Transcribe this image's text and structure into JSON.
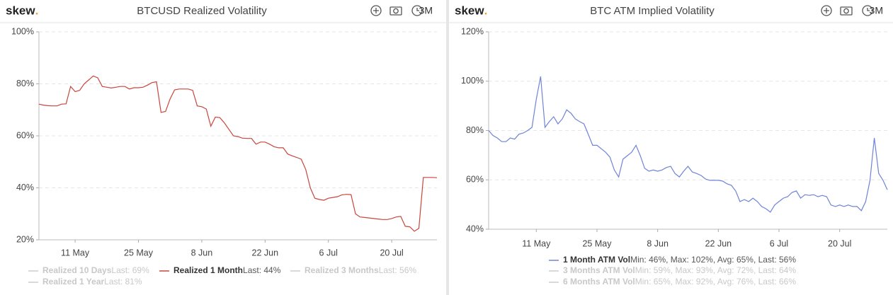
{
  "chart_data": [
    {
      "type": "line",
      "logo": "skew",
      "logo_dot": ".",
      "title": "BTCUSD Realized Volatility",
      "range_button": "3M",
      "x": [
        "3 May",
        "4 May",
        "5 May",
        "6 May",
        "7 May",
        "8 May",
        "9 May",
        "10 May",
        "11 May",
        "12 May",
        "13 May",
        "14 May",
        "15 May",
        "16 May",
        "17 May",
        "18 May",
        "19 May",
        "20 May",
        "21 May",
        "22 May",
        "23 May",
        "24 May",
        "25 May",
        "26 May",
        "27 May",
        "28 May",
        "29 May",
        "30 May",
        "31 May",
        "1 Jun",
        "2 Jun",
        "3 Jun",
        "4 Jun",
        "5 Jun",
        "6 Jun",
        "7 Jun",
        "8 Jun",
        "9 Jun",
        "10 Jun",
        "11 Jun",
        "12 Jun",
        "13 Jun",
        "14 Jun",
        "15 Jun",
        "16 Jun",
        "17 Jun",
        "18 Jun",
        "19 Jun",
        "20 Jun",
        "21 Jun",
        "22 Jun",
        "23 Jun",
        "24 Jun",
        "25 Jun",
        "26 Jun",
        "27 Jun",
        "28 Jun",
        "29 Jun",
        "30 Jun",
        "1 Jul",
        "2 Jul",
        "3 Jul",
        "4 Jul",
        "5 Jul",
        "6 Jul",
        "7 Jul",
        "8 Jul",
        "9 Jul",
        "10 Jul",
        "11 Jul",
        "12 Jul",
        "13 Jul",
        "14 Jul",
        "15 Jul",
        "16 Jul",
        "17 Jul",
        "18 Jul",
        "19 Jul",
        "20 Jul",
        "21 Jul",
        "22 Jul",
        "23 Jul",
        "24 Jul",
        "25 Jul",
        "26 Jul",
        "27 Jul",
        "28 Jul",
        "29 Jul",
        "30 Jul"
      ],
      "xlim": [
        "3 May",
        "30 Jul"
      ],
      "xticks": [
        "11 May",
        "25 May",
        "8 Jun",
        "22 Jun",
        "6 Jul",
        "20 Jul"
      ],
      "ylim": [
        20,
        100
      ],
      "yticks": [
        {
          "value": 20,
          "label": "20%"
        },
        {
          "value": 40,
          "label": "40%"
        },
        {
          "value": 60,
          "label": "60%"
        },
        {
          "value": 80,
          "label": "80%"
        },
        {
          "value": 100,
          "label": "100%"
        }
      ],
      "grid": true,
      "series": [
        {
          "name": "Realized 10 Days",
          "stats": "Last: 69%",
          "hidden": true
        },
        {
          "name": "Realized 1 Month",
          "stats": "Last: 44%",
          "color": "#c8463c",
          "values": [
            72.2,
            71.8,
            71.6,
            71.5,
            71.5,
            72.2,
            72.3,
            79,
            77,
            77.5,
            80,
            81.5,
            83,
            82.3,
            79,
            78.7,
            78.4,
            78.7,
            79,
            79,
            78,
            78.5,
            78.5,
            78.7,
            79.5,
            80.5,
            80.8,
            69,
            69.4,
            74.2,
            77.7,
            78,
            78,
            78,
            77.5,
            71.5,
            71.2,
            70.3,
            63.7,
            67.2,
            67,
            65,
            62.5,
            60,
            59.7,
            59.1,
            59,
            59,
            56.8,
            57.6,
            57.6,
            56.8,
            55.8,
            55.4,
            55.4,
            53,
            52.3,
            51.7,
            51,
            47,
            40,
            36,
            35.5,
            35.2,
            36,
            36.3,
            36.6,
            37.3,
            37.5,
            37.4,
            30,
            28.8,
            28.6,
            28.4,
            28.2,
            28,
            27.8,
            27.8,
            28.2,
            28.8,
            29,
            25.2,
            25,
            23.3,
            24.4,
            44,
            44,
            44,
            43.9
          ]
        },
        {
          "name": "Realized 3 Months",
          "stats": "Last: 56%",
          "hidden": true
        },
        {
          "name": "Realized 1 Year",
          "stats": "Last: 81%",
          "hidden": true
        }
      ]
    },
    {
      "type": "line",
      "logo": "skew",
      "logo_dot": ".",
      "title": "BTC ATM Implied Volatility",
      "range_button": "3M",
      "x": [
        "30 Apr",
        "1 May",
        "2 May",
        "3 May",
        "4 May",
        "5 May",
        "6 May",
        "7 May",
        "8 May",
        "9 May",
        "10 May",
        "11 May",
        "12 May",
        "13 May",
        "14 May",
        "15 May",
        "16 May",
        "17 May",
        "18 May",
        "19 May",
        "20 May",
        "21 May",
        "22 May",
        "23 May",
        "24 May",
        "25 May",
        "26 May",
        "27 May",
        "28 May",
        "29 May",
        "30 May",
        "31 May",
        "1 Jun",
        "2 Jun",
        "3 Jun",
        "4 Jun",
        "5 Jun",
        "6 Jun",
        "7 Jun",
        "8 Jun",
        "9 Jun",
        "10 Jun",
        "11 Jun",
        "12 Jun",
        "13 Jun",
        "14 Jun",
        "15 Jun",
        "16 Jun",
        "17 Jun",
        "18 Jun",
        "19 Jun",
        "20 Jun",
        "21 Jun",
        "22 Jun",
        "23 Jun",
        "24 Jun",
        "25 Jun",
        "26 Jun",
        "27 Jun",
        "28 Jun",
        "29 Jun",
        "30 Jun",
        "1 Jul",
        "2 Jul",
        "3 Jul",
        "4 Jul",
        "5 Jul",
        "6 Jul",
        "7 Jul",
        "8 Jul",
        "9 Jul",
        "10 Jul",
        "11 Jul",
        "12 Jul",
        "13 Jul",
        "14 Jul",
        "15 Jul",
        "16 Jul",
        "17 Jul",
        "18 Jul",
        "19 Jul",
        "20 Jul",
        "21 Jul",
        "22 Jul",
        "23 Jul",
        "24 Jul",
        "25 Jul",
        "26 Jul",
        "27 Jul",
        "28 Jul",
        "29 Jul",
        "30 Jul",
        "31 Jul"
      ],
      "xlim": [
        "30 Apr",
        "31 Jul"
      ],
      "xticks": [
        "11 May",
        "25 May",
        "8 Jun",
        "22 Jun",
        "6 Jul",
        "20 Jul"
      ],
      "ylim": [
        40,
        120
      ],
      "yticks": [
        {
          "value": 40,
          "label": "40%"
        },
        {
          "value": 60,
          "label": "60%"
        },
        {
          "value": 80,
          "label": "80%"
        },
        {
          "value": 100,
          "label": "100%"
        },
        {
          "value": 120,
          "label": "120%"
        }
      ],
      "grid": true,
      "series": [
        {
          "name": "1 Month ATM Vol",
          "stats": "Min: 46%, Max: 102%, Avg: 65%, Last: 56%",
          "color": "#6f83d8",
          "values": [
            80,
            78,
            77,
            75.5,
            75.5,
            77,
            76.5,
            78.5,
            79,
            80,
            81.3,
            92.7,
            101.9,
            81.3,
            83.6,
            85.6,
            82.7,
            84.7,
            88.4,
            87,
            84.7,
            83.6,
            82.7,
            78.4,
            74,
            74,
            72.6,
            71.2,
            69.2,
            64,
            61.2,
            68.4,
            69.8,
            71.2,
            74,
            69.8,
            64.7,
            63.5,
            64,
            63.5,
            64,
            65,
            65.5,
            62.6,
            61.2,
            63.5,
            65.5,
            63.2,
            62.6,
            61.8,
            60.4,
            59.8,
            59.8,
            59.8,
            59.5,
            58.4,
            57.8,
            55.5,
            51.2,
            52,
            51.2,
            52.6,
            51.2,
            49.2,
            48.3,
            46.9,
            49.8,
            51.2,
            52.6,
            53.2,
            54.9,
            55.5,
            52.6,
            54,
            53.7,
            54,
            53.2,
            53.7,
            53.2,
            49.8,
            49.2,
            49.8,
            49.2,
            49.8,
            49.2,
            49.2,
            47.5,
            51.2,
            59.8,
            77,
            62.6,
            59.8,
            56
          ]
        },
        {
          "name": "3 Months ATM Vol",
          "stats": "Min: 59%, Max: 93%, Avg: 72%, Last: 64%",
          "hidden": true
        },
        {
          "name": "6 Months ATM Vol",
          "stats": "Min: 65%, Max: 92%, Avg: 76%, Last: 66%",
          "hidden": true
        }
      ]
    }
  ]
}
